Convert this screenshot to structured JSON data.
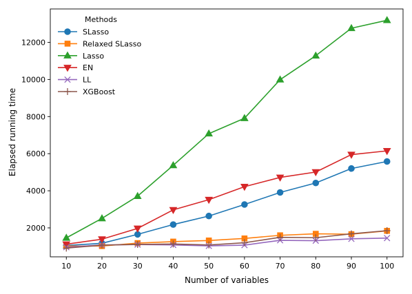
{
  "chart_data": {
    "type": "line",
    "title": "",
    "xlabel": "Number of variables",
    "ylabel": "Elapsed running time",
    "x": [
      10,
      20,
      30,
      40,
      50,
      60,
      70,
      80,
      90,
      100
    ],
    "xticks": [
      "10",
      "20",
      "30",
      "40",
      "50",
      "60",
      "70",
      "80",
      "90",
      "100"
    ],
    "yticks": [
      2000,
      4000,
      6000,
      8000,
      10000,
      12000
    ],
    "ytick_labels": [
      "2000",
      "4000",
      "6000",
      "8000",
      "10000",
      "12000"
    ],
    "xlim": [
      5.5,
      104.5
    ],
    "ylim": [
      440,
      13800
    ],
    "grid": false,
    "legend": {
      "title": "Methods",
      "placement": "upper-left"
    },
    "series": [
      {
        "name": "SLasso",
        "color": "#1f77b4",
        "marker": "circle",
        "values": [
          1050,
          1170,
          1650,
          2180,
          2640,
          3260,
          3910,
          4420,
          5200,
          5580
        ]
      },
      {
        "name": "Relaxed SLasso",
        "color": "#ff7f0e",
        "marker": "square",
        "values": [
          1020,
          1020,
          1180,
          1260,
          1320,
          1430,
          1600,
          1680,
          1660,
          1840
        ]
      },
      {
        "name": "Lasso",
        "color": "#2ca02c",
        "marker": "triangle-up",
        "values": [
          1460,
          2510,
          3710,
          5370,
          7080,
          7910,
          9990,
          11280,
          12760,
          13190
        ]
      },
      {
        "name": "EN",
        "color": "#d62728",
        "marker": "triangle-down",
        "values": [
          1120,
          1390,
          1970,
          2970,
          3520,
          4220,
          4720,
          5010,
          5950,
          6150
        ]
      },
      {
        "name": "LL",
        "color": "#9467bd",
        "marker": "x",
        "values": [
          960,
          1080,
          1100,
          1080,
          1030,
          1070,
          1330,
          1310,
          1410,
          1450
        ]
      },
      {
        "name": "XGBoost",
        "color": "#8c564b",
        "marker": "plus",
        "values": [
          910,
          1070,
          1110,
          1130,
          1080,
          1200,
          1490,
          1470,
          1680,
          1850
        ]
      }
    ]
  }
}
